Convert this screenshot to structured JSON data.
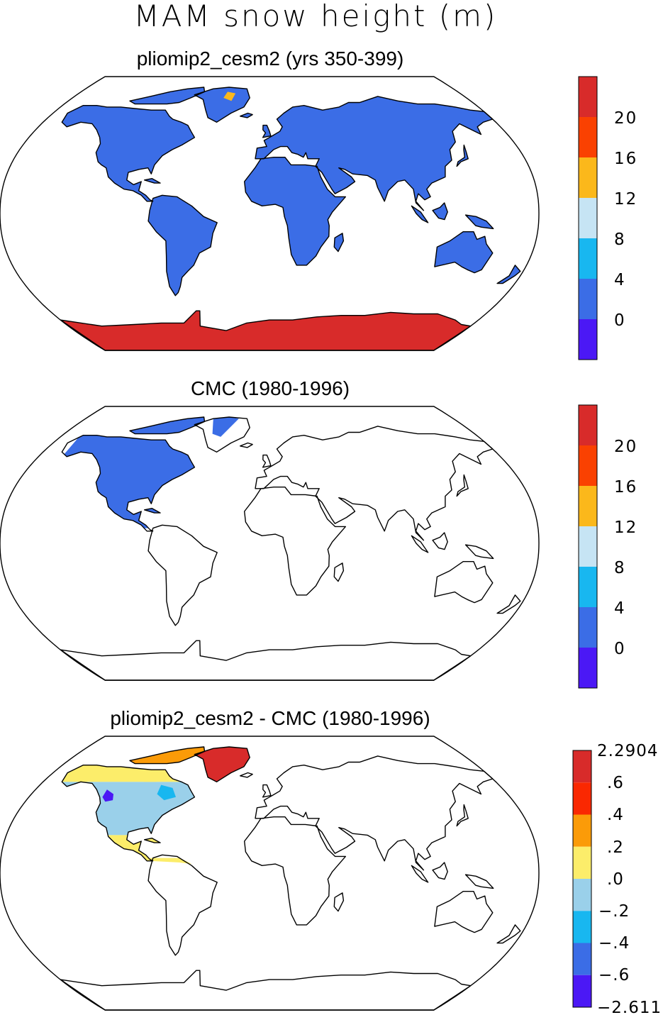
{
  "title": "MAM snow height (m)",
  "colors": {
    "abs": [
      "#4b18f5",
      "#3b6de6",
      "#18b7f0",
      "#c6e4f4",
      "#fbb81b",
      "#fa4101",
      "#d82b2a"
    ],
    "diff": [
      "#4b18f5",
      "#3b6de6",
      "#18b7f0",
      "#9ad0ea",
      "#fced6a",
      "#fb9b08",
      "#fa2801",
      "#d82b2a"
    ]
  },
  "chart_data": [
    {
      "type": "heatmap",
      "projection": "robinson",
      "title": "pliomip2_cesm2 (yrs 350-399)",
      "colorbar": {
        "ticks": [
          "20",
          "16",
          "12",
          "8",
          "4",
          "0"
        ],
        "bins": [
          [
            -4,
            0
          ],
          [
            0,
            4
          ],
          [
            4,
            8
          ],
          [
            8,
            12
          ],
          [
            12,
            16
          ],
          [
            16,
            20
          ],
          [
            20,
            24
          ]
        ]
      },
      "regions": [
        {
          "name": "land (excluding Antarctica)",
          "class": "0 to 4",
          "color_index": 1
        },
        {
          "name": "Antarctica",
          "class": "20 to 24",
          "color_index": 6
        },
        {
          "name": "Greenland interior",
          "class": "12 to 16",
          "color_index": 4
        }
      ]
    },
    {
      "type": "heatmap",
      "projection": "robinson",
      "title": "CMC (1980-1996)",
      "colorbar": {
        "ticks": [
          "20",
          "16",
          "12",
          "8",
          "4",
          "0"
        ],
        "bins": [
          [
            -4,
            0
          ],
          [
            0,
            4
          ],
          [
            4,
            8
          ],
          [
            8,
            12
          ],
          [
            12,
            16
          ],
          [
            16,
            20
          ],
          [
            20,
            24
          ]
        ]
      },
      "regions": [
        {
          "name": "North America to 10N",
          "class": "0 to 4",
          "color_index": 1
        }
      ]
    },
    {
      "type": "heatmap",
      "projection": "robinson",
      "title": "pliomip2_cesm2 - CMC (1980-1996)",
      "colorbar": {
        "ticks": [
          "2.2904",
          ".6",
          ".4",
          ".2",
          ".0",
          "−.2",
          "−.4",
          "−.6",
          "−2.611"
        ],
        "bins": [
          [
            -2.611,
            -0.6
          ],
          [
            -0.6,
            -0.4
          ],
          [
            -0.4,
            -0.2
          ],
          [
            -0.2,
            0.0
          ],
          [
            0.0,
            0.2
          ],
          [
            0.2,
            0.4
          ],
          [
            0.4,
            0.6
          ],
          [
            0.6,
            2.2904
          ]
        ]
      },
      "regions": [
        {
          "name": "Greenland",
          "class": ".6 to 2.2904",
          "color_index": 7
        },
        {
          "name": "Canadian Arctic Archipelago",
          "class": ".2 to .6",
          "color_index": 5
        },
        {
          "name": "continental US",
          "class": "-.2 to .0",
          "color_index": 3
        },
        {
          "name": "Canadian interior",
          "class": "-.4 to .2 mixed",
          "color_index": 3
        },
        {
          "name": "Mexico / Central America / northern South America",
          "class": ".0 to .2",
          "color_index": 4
        }
      ]
    }
  ]
}
